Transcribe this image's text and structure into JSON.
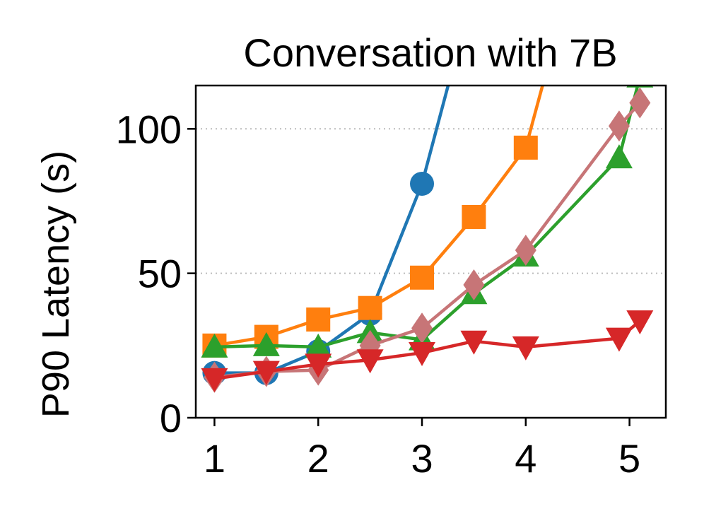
{
  "chart_data": {
    "type": "line",
    "title": "Conversation with 7B",
    "xlabel": "",
    "ylabel": "P90 Latency (s)",
    "xlim": [
      0.82,
      5.35
    ],
    "ylim": [
      0,
      115
    ],
    "xticks": [
      1,
      2,
      3,
      4,
      5
    ],
    "yticks": [
      0,
      50,
      100
    ],
    "grid": {
      "axis": "y",
      "style": "dotted",
      "values": [
        50,
        100
      ]
    },
    "legend": null,
    "series": [
      {
        "color": "#1f77b4",
        "marker": "circle",
        "x": [
          1,
          1.5,
          2,
          2.5,
          3,
          3.4
        ],
        "y": [
          15.5,
          15.5,
          23,
          36,
          81,
          135
        ]
      },
      {
        "color": "#ff7f0e",
        "marker": "square",
        "x": [
          1,
          1.5,
          2,
          2.5,
          3,
          3.5,
          4,
          4.35
        ],
        "y": [
          25,
          28,
          34,
          38,
          48.5,
          69.5,
          93.5,
          140
        ]
      },
      {
        "color": "#2ca02c",
        "marker": "triangle-up",
        "x": [
          1,
          1.5,
          2,
          2.5,
          3,
          3.5,
          4,
          4.9,
          5.1
        ],
        "y": [
          24.5,
          25,
          24.5,
          29.5,
          27,
          43,
          56,
          90,
          118
        ]
      },
      {
        "color": "#c77577",
        "marker": "diamond",
        "x": [
          1,
          1.5,
          2,
          2.5,
          3,
          3.5,
          4,
          4.9,
          5.1
        ],
        "y": [
          14,
          16,
          16.5,
          25,
          31,
          46,
          58,
          101,
          109
        ]
      },
      {
        "color": "#d62728",
        "marker": "triangle-down",
        "x": [
          1,
          1.5,
          2,
          2.5,
          3,
          3.5,
          4,
          4.9,
          5.1
        ],
        "y": [
          13.5,
          16,
          18.5,
          20,
          22.5,
          26.5,
          24.5,
          27.5,
          33.5
        ]
      }
    ]
  }
}
